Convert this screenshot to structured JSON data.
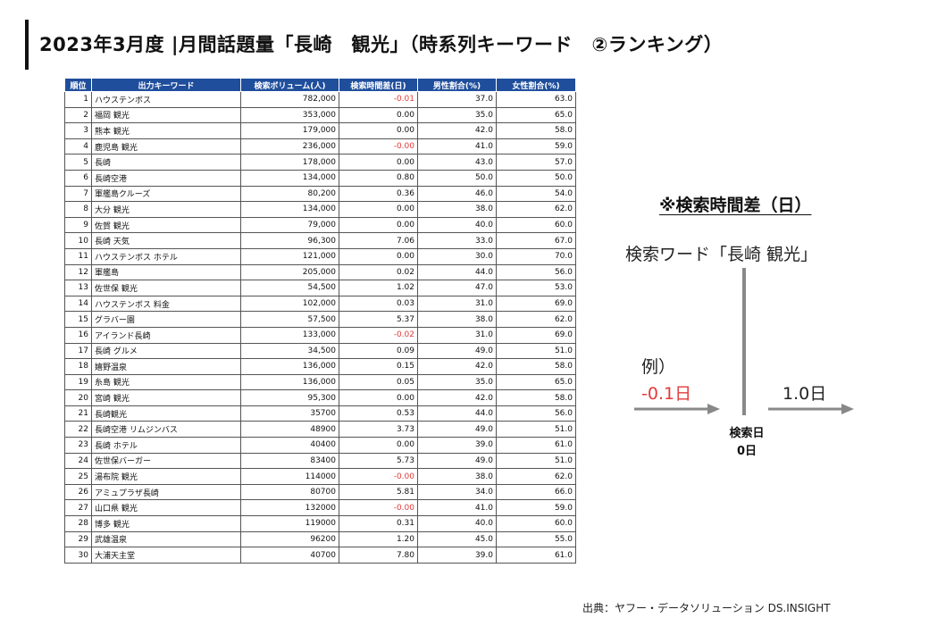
{
  "title": "2023年3月度 |月間話題量「長崎　観光」（時系列キーワード　②ランキング）",
  "table": {
    "headers": [
      "順位",
      "出力キーワード",
      "検索ボリューム(人)",
      "検索時間差(日)",
      "男性割合(%)",
      "女性割合(%)"
    ],
    "rows": [
      {
        "rank": "1",
        "keyword": "ハウステンボス",
        "volume": "782,000",
        "diff": "-0.01",
        "male": "37.0",
        "female": "63.0"
      },
      {
        "rank": "2",
        "keyword": "福岡 観光",
        "volume": "353,000",
        "diff": "0.00",
        "male": "35.0",
        "female": "65.0"
      },
      {
        "rank": "3",
        "keyword": "熊本 観光",
        "volume": "179,000",
        "diff": "0.00",
        "male": "42.0",
        "female": "58.0"
      },
      {
        "rank": "4",
        "keyword": "鹿児島 観光",
        "volume": "236,000",
        "diff": "-0.00",
        "male": "41.0",
        "female": "59.0"
      },
      {
        "rank": "5",
        "keyword": "長崎",
        "volume": "178,000",
        "diff": "0.00",
        "male": "43.0",
        "female": "57.0"
      },
      {
        "rank": "6",
        "keyword": "長崎空港",
        "volume": "134,000",
        "diff": "0.80",
        "male": "50.0",
        "female": "50.0"
      },
      {
        "rank": "7",
        "keyword": "軍艦島クルーズ",
        "volume": "80,200",
        "diff": "0.36",
        "male": "46.0",
        "female": "54.0"
      },
      {
        "rank": "8",
        "keyword": "大分 観光",
        "volume": "134,000",
        "diff": "0.00",
        "male": "38.0",
        "female": "62.0"
      },
      {
        "rank": "9",
        "keyword": "佐賀 観光",
        "volume": "79,000",
        "diff": "0.00",
        "male": "40.0",
        "female": "60.0"
      },
      {
        "rank": "10",
        "keyword": "長崎 天気",
        "volume": "96,300",
        "diff": "7.06",
        "male": "33.0",
        "female": "67.0"
      },
      {
        "rank": "11",
        "keyword": "ハウステンボス ホテル",
        "volume": "121,000",
        "diff": "0.00",
        "male": "30.0",
        "female": "70.0"
      },
      {
        "rank": "12",
        "keyword": "軍艦島",
        "volume": "205,000",
        "diff": "0.02",
        "male": "44.0",
        "female": "56.0"
      },
      {
        "rank": "13",
        "keyword": "佐世保 観光",
        "volume": "54,500",
        "diff": "1.02",
        "male": "47.0",
        "female": "53.0"
      },
      {
        "rank": "14",
        "keyword": "ハウステンボス 料金",
        "volume": "102,000",
        "diff": "0.03",
        "male": "31.0",
        "female": "69.0"
      },
      {
        "rank": "15",
        "keyword": "グラバー園",
        "volume": "57,500",
        "diff": "5.37",
        "male": "38.0",
        "female": "62.0"
      },
      {
        "rank": "16",
        "keyword": "アイランド長崎",
        "volume": "133,000",
        "diff": "-0.02",
        "male": "31.0",
        "female": "69.0"
      },
      {
        "rank": "17",
        "keyword": "長崎 グルメ",
        "volume": "34,500",
        "diff": "0.09",
        "male": "49.0",
        "female": "51.0"
      },
      {
        "rank": "18",
        "keyword": "嬉野温泉",
        "volume": "136,000",
        "diff": "0.15",
        "male": "42.0",
        "female": "58.0"
      },
      {
        "rank": "19",
        "keyword": "糸島 観光",
        "volume": "136,000",
        "diff": "0.05",
        "male": "35.0",
        "female": "65.0"
      },
      {
        "rank": "20",
        "keyword": "宮崎 観光",
        "volume": "95,300",
        "diff": "0.00",
        "male": "42.0",
        "female": "58.0"
      },
      {
        "rank": "21",
        "keyword": "長崎観光",
        "volume": "35700",
        "diff": "0.53",
        "male": "44.0",
        "female": "56.0"
      },
      {
        "rank": "22",
        "keyword": "長崎空港 リムジンバス",
        "volume": "48900",
        "diff": "3.73",
        "male": "49.0",
        "female": "51.0"
      },
      {
        "rank": "23",
        "keyword": "長崎 ホテル",
        "volume": "40400",
        "diff": "0.00",
        "male": "39.0",
        "female": "61.0"
      },
      {
        "rank": "24",
        "keyword": "佐世保バーガー",
        "volume": "83400",
        "diff": "5.73",
        "male": "49.0",
        "female": "51.0"
      },
      {
        "rank": "25",
        "keyword": "湯布院 観光",
        "volume": "114000",
        "diff": "-0.00",
        "male": "38.0",
        "female": "62.0"
      },
      {
        "rank": "26",
        "keyword": "アミュプラザ長崎",
        "volume": "80700",
        "diff": "5.81",
        "male": "34.0",
        "female": "66.0"
      },
      {
        "rank": "27",
        "keyword": "山口県 観光",
        "volume": "132000",
        "diff": "-0.00",
        "male": "41.0",
        "female": "59.0"
      },
      {
        "rank": "28",
        "keyword": "博多 観光",
        "volume": "119000",
        "diff": "0.31",
        "male": "40.0",
        "female": "60.0"
      },
      {
        "rank": "29",
        "keyword": "武雄温泉",
        "volume": "96200",
        "diff": "1.20",
        "male": "45.0",
        "female": "55.0"
      },
      {
        "rank": "30",
        "keyword": "大浦天主堂",
        "volume": "40700",
        "diff": "7.80",
        "male": "39.0",
        "female": "61.0"
      }
    ]
  },
  "note": {
    "title": "※検索時間差（日）",
    "keyword_label": "検索ワード「長崎 観光」",
    "example_label": "例）",
    "neg_example": "-0.1日",
    "pos_example": "1.0日",
    "day_label_1": "検索日",
    "day_label_2": "0日"
  },
  "colors": {
    "header_bg": "#1f4e9c",
    "negative": "#e23a3a",
    "arrow": "#888888"
  },
  "source": "出典：ヤフー・データソリューション DS.INSIGHT"
}
